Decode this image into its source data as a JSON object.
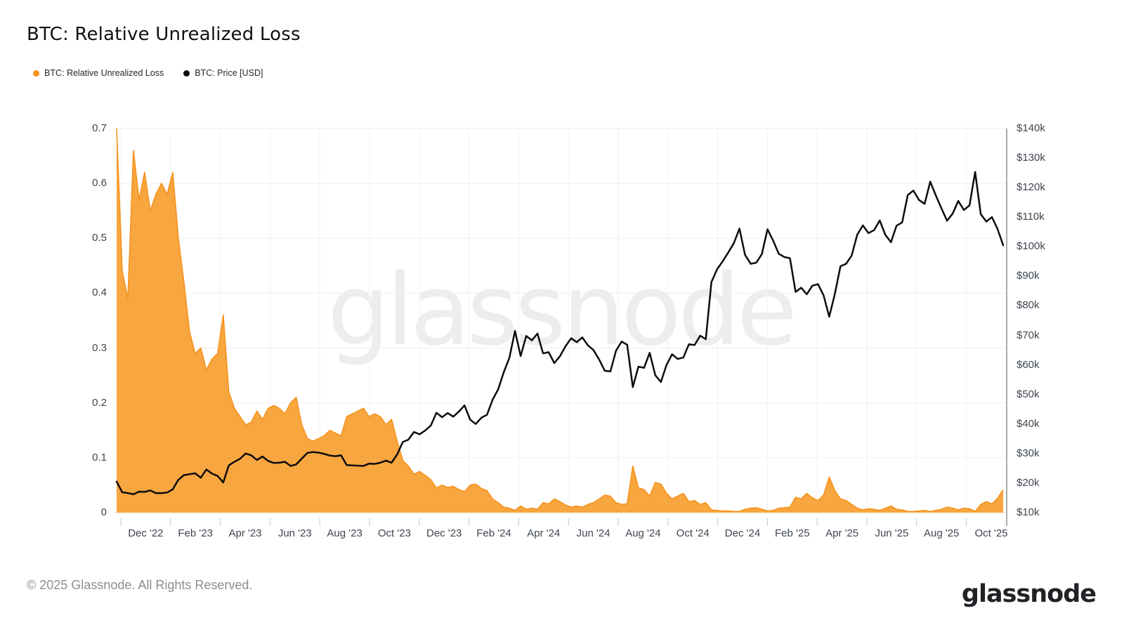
{
  "header": {
    "title": "BTC: Relative Unrealized Loss"
  },
  "legend": {
    "items": [
      {
        "label": "BTC: Relative Unrealized Loss",
        "color": "#F7931A"
      },
      {
        "label": "BTC: Price [USD]",
        "color": "#0C0C0C"
      }
    ]
  },
  "watermark": "glassnode",
  "footer": {
    "copyright": "© 2025 Glassnode. All Rights Reserved.",
    "brand": "glassnode"
  },
  "chart_data": {
    "type": "area+line",
    "title": "BTC: Relative Unrealized Loss",
    "x_range": [
      "Nov 2022",
      "Nov 2025"
    ],
    "cadence": "weekly",
    "grid": "horizontal+vertical",
    "legend_position": "top-left",
    "x_tick_labels": [
      "Dec '22",
      "Feb '23",
      "Apr '23",
      "Jun '23",
      "Aug '23",
      "Oct '23",
      "Dec '23",
      "Feb '24",
      "Apr '24",
      "Jun '24",
      "Aug '24",
      "Oct '24",
      "Dec '24",
      "Feb '25",
      "Apr '25",
      "Jun '25",
      "Aug '25",
      "Oct '25"
    ],
    "left_axis": {
      "series": "BTC: Relative Unrealized Loss",
      "range": [
        0,
        0.7
      ],
      "tick_labels": [
        "0",
        "0.1",
        "0.2",
        "0.3",
        "0.4",
        "0.5",
        "0.6",
        "0.7"
      ]
    },
    "right_axis": {
      "series": "BTC: Price [USD]",
      "range_usd": [
        10000,
        140000
      ],
      "tick_labels": [
        "$10k",
        "$20k",
        "$30k",
        "$40k",
        "$50k",
        "$60k",
        "$70k",
        "$80k",
        "$90k",
        "$100k",
        "$110k",
        "$120k",
        "$130k",
        "$140k"
      ]
    },
    "series": [
      {
        "name": "BTC: Relative Unrealized Loss",
        "type": "area",
        "axis": "left",
        "line_color": "#F6931D",
        "fill_color": "#F8A63F",
        "values": [
          0.7,
          0.44,
          0.39,
          0.66,
          0.57,
          0.62,
          0.55,
          0.58,
          0.6,
          0.58,
          0.62,
          0.5,
          0.42,
          0.33,
          0.29,
          0.3,
          0.26,
          0.28,
          0.29,
          0.36,
          0.22,
          0.19,
          0.175,
          0.16,
          0.165,
          0.185,
          0.17,
          0.19,
          0.195,
          0.19,
          0.18,
          0.2,
          0.21,
          0.16,
          0.135,
          0.13,
          0.135,
          0.14,
          0.15,
          0.145,
          0.14,
          0.175,
          0.18,
          0.185,
          0.19,
          0.175,
          0.18,
          0.175,
          0.16,
          0.17,
          0.13,
          0.095,
          0.085,
          0.07,
          0.075,
          0.068,
          0.06,
          0.045,
          0.05,
          0.046,
          0.048,
          0.042,
          0.038,
          0.05,
          0.052,
          0.044,
          0.04,
          0.025,
          0.018,
          0.01,
          0.008,
          0.004,
          0.012,
          0.006,
          0.008,
          0.006,
          0.018,
          0.016,
          0.025,
          0.02,
          0.014,
          0.01,
          0.012,
          0.01,
          0.015,
          0.018,
          0.025,
          0.032,
          0.03,
          0.018,
          0.015,
          0.016,
          0.085,
          0.045,
          0.042,
          0.03,
          0.055,
          0.052,
          0.035,
          0.025,
          0.03,
          0.035,
          0.02,
          0.022,
          0.015,
          0.018,
          0.005,
          0.004,
          0.003,
          0.003,
          0.002,
          0.002,
          0.006,
          0.008,
          0.009,
          0.006,
          0.003,
          0.004,
          0.008,
          0.009,
          0.01,
          0.028,
          0.025,
          0.035,
          0.027,
          0.022,
          0.032,
          0.065,
          0.04,
          0.025,
          0.022,
          0.015,
          0.008,
          0.005,
          0.007,
          0.006,
          0.004,
          0.008,
          0.012,
          0.006,
          0.005,
          0.002,
          0.002,
          0.003,
          0.004,
          0.002,
          0.004,
          0.006,
          0.01,
          0.008,
          0.005,
          0.008,
          0.007,
          0.002,
          0.015,
          0.02,
          0.016,
          0.026,
          0.042
        ]
      },
      {
        "name": "BTC: Price [USD]",
        "type": "line",
        "axis": "right",
        "line_color": "#0C0C0C",
        "values_usd_k": [
          20.5,
          16.9,
          16.6,
          16.2,
          17.1,
          17.0,
          17.5,
          16.6,
          16.6,
          16.8,
          17.9,
          21.1,
          22.7,
          23.0,
          23.3,
          21.8,
          24.6,
          23.2,
          22.4,
          20.2,
          26.0,
          27.2,
          28.2,
          30.0,
          29.4,
          27.8,
          29.0,
          27.5,
          26.8,
          26.9,
          27.2,
          25.8,
          26.3,
          28.3,
          30.2,
          30.5,
          30.3,
          29.9,
          29.3,
          29.1,
          29.4,
          26.1,
          26.0,
          25.9,
          25.8,
          26.6,
          26.5,
          26.9,
          27.6,
          26.9,
          29.7,
          33.9,
          34.7,
          37.3,
          36.5,
          37.8,
          39.5,
          43.8,
          42.3,
          43.7,
          42.5,
          44.2,
          46.3,
          41.5,
          40.0,
          42.1,
          43.1,
          48.2,
          51.7,
          57.5,
          62.4,
          71.5,
          63.0,
          69.8,
          68.3,
          70.6,
          63.9,
          64.3,
          60.6,
          62.9,
          66.3,
          69.0,
          67.7,
          69.3,
          66.6,
          65.0,
          61.8,
          58.0,
          57.8,
          64.8,
          67.9,
          66.8,
          52.5,
          59.4,
          59.0,
          64.1,
          56.5,
          54.2,
          60.0,
          63.6,
          62.0,
          62.5,
          67.0,
          66.7,
          69.9,
          68.7,
          88.0,
          92.3,
          95.0,
          98.0,
          101.2,
          106.1,
          97.2,
          94.2,
          94.6,
          97.5,
          105.9,
          102.1,
          97.6,
          96.5,
          96.1,
          84.7,
          86.1,
          83.9,
          86.8,
          87.3,
          83.5,
          76.3,
          84.0,
          93.4,
          94.2,
          97.0,
          104.1,
          107.2,
          104.6,
          105.6,
          108.9,
          104.0,
          101.5,
          107.1,
          108.2,
          117.5,
          119.0,
          115.8,
          114.5,
          122.0,
          117.3,
          113.0,
          108.8,
          111.2,
          115.5,
          112.4,
          114.0,
          125.3,
          111.0,
          108.5,
          110.0,
          106.0,
          100.5
        ]
      }
    ]
  }
}
